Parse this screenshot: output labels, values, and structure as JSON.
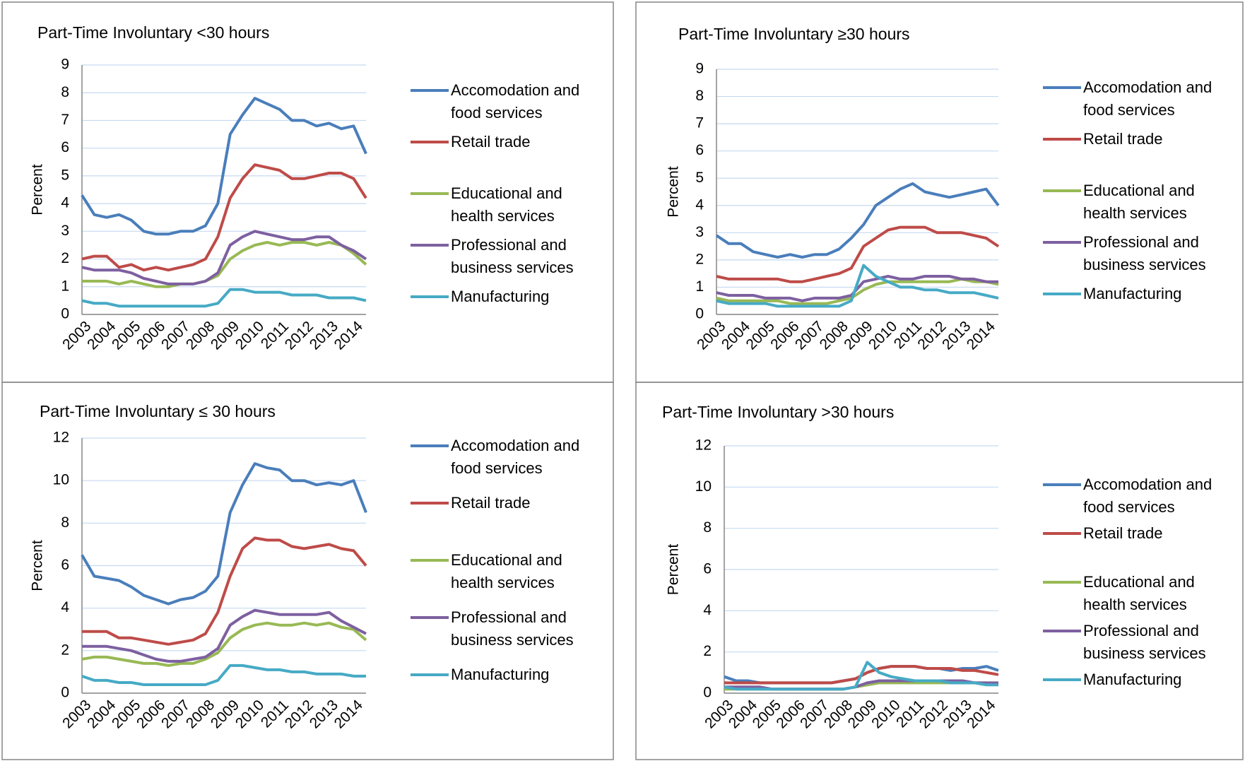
{
  "chart_data": [
    {
      "type": "line",
      "title": "Part-Time Involuntary <30 hours",
      "y_label": "Percent",
      "categories": [
        "2003",
        null,
        "2004",
        null,
        "2005",
        null,
        "2006",
        null,
        "2007",
        null,
        "2008",
        null,
        "2009",
        null,
        "2010",
        null,
        "2011",
        null,
        "2012",
        null,
        "2013",
        null,
        "2014",
        null
      ],
      "ylim": [
        0,
        9
      ],
      "yticks": [
        0,
        1,
        2,
        3,
        4,
        5,
        6,
        7,
        8,
        9
      ],
      "grid": true,
      "series": [
        {
          "name": "Accomodation and food services",
          "color": "#4a7ebb",
          "values": [
            4.3,
            3.6,
            3.5,
            3.6,
            3.4,
            3.0,
            2.9,
            2.9,
            3.0,
            3.0,
            3.2,
            4.0,
            6.5,
            7.2,
            7.8,
            7.6,
            7.4,
            7.0,
            7.0,
            6.8,
            6.9,
            6.7,
            6.8,
            5.8
          ]
        },
        {
          "name": "Retail trade",
          "color": "#be4b48",
          "values": [
            2.0,
            2.1,
            2.1,
            1.7,
            1.8,
            1.6,
            1.7,
            1.6,
            1.7,
            1.8,
            2.0,
            2.8,
            4.2,
            4.9,
            5.4,
            5.3,
            5.2,
            4.9,
            4.9,
            5.0,
            5.1,
            5.1,
            4.9,
            4.2
          ]
        },
        {
          "name": "Educational and health services",
          "color": "#98b954",
          "values": [
            1.2,
            1.2,
            1.2,
            1.1,
            1.2,
            1.1,
            1.0,
            1.0,
            1.1,
            1.1,
            1.2,
            1.4,
            2.0,
            2.3,
            2.5,
            2.6,
            2.5,
            2.6,
            2.6,
            2.5,
            2.6,
            2.5,
            2.2,
            1.8
          ]
        },
        {
          "name": "Professional and business services",
          "color": "#7d60a0",
          "values": [
            1.7,
            1.6,
            1.6,
            1.6,
            1.5,
            1.3,
            1.2,
            1.1,
            1.1,
            1.1,
            1.2,
            1.5,
            2.5,
            2.8,
            3.0,
            2.9,
            2.8,
            2.7,
            2.7,
            2.8,
            2.8,
            2.5,
            2.3,
            2.0
          ]
        },
        {
          "name": "Manufacturing",
          "color": "#46aac5",
          "values": [
            0.5,
            0.4,
            0.4,
            0.3,
            0.3,
            0.3,
            0.3,
            0.3,
            0.3,
            0.3,
            0.3,
            0.4,
            0.9,
            0.9,
            0.8,
            0.8,
            0.8,
            0.7,
            0.7,
            0.7,
            0.6,
            0.6,
            0.6,
            0.5
          ]
        }
      ]
    },
    {
      "type": "line",
      "title": "Part-Time Involuntary ≥30 hours",
      "y_label": "Percent",
      "categories": [
        "2003",
        null,
        "2004",
        null,
        "2005",
        null,
        "2006",
        null,
        "2007",
        null,
        "2008",
        null,
        "2009",
        null,
        "2010",
        null,
        "2011",
        null,
        "2012",
        null,
        "2013",
        null,
        "2014",
        null
      ],
      "ylim": [
        0,
        9
      ],
      "yticks": [
        0,
        1,
        2,
        3,
        4,
        5,
        6,
        7,
        8,
        9
      ],
      "grid": true,
      "series": [
        {
          "name": "Accomodation and food services",
          "color": "#4a7ebb",
          "values": [
            2.9,
            2.6,
            2.6,
            2.3,
            2.2,
            2.1,
            2.2,
            2.1,
            2.2,
            2.2,
            2.4,
            2.8,
            3.3,
            4.0,
            4.3,
            4.6,
            4.8,
            4.5,
            4.4,
            4.3,
            4.4,
            4.5,
            4.6,
            4.0
          ]
        },
        {
          "name": "Retail trade",
          "color": "#be4b48",
          "values": [
            1.4,
            1.3,
            1.3,
            1.3,
            1.3,
            1.3,
            1.2,
            1.2,
            1.3,
            1.4,
            1.5,
            1.7,
            2.5,
            2.8,
            3.1,
            3.2,
            3.2,
            3.2,
            3.0,
            3.0,
            3.0,
            2.9,
            2.8,
            2.5
          ]
        },
        {
          "name": "Educational and health services",
          "color": "#98b954",
          "values": [
            0.6,
            0.5,
            0.5,
            0.5,
            0.5,
            0.5,
            0.4,
            0.4,
            0.4,
            0.4,
            0.5,
            0.6,
            0.9,
            1.1,
            1.2,
            1.2,
            1.2,
            1.2,
            1.2,
            1.2,
            1.3,
            1.2,
            1.2,
            1.1
          ]
        },
        {
          "name": "Professional and business services",
          "color": "#7d60a0",
          "values": [
            0.8,
            0.7,
            0.7,
            0.7,
            0.6,
            0.6,
            0.6,
            0.5,
            0.6,
            0.6,
            0.6,
            0.7,
            1.2,
            1.3,
            1.4,
            1.3,
            1.3,
            1.4,
            1.4,
            1.4,
            1.3,
            1.3,
            1.2,
            1.2
          ]
        },
        {
          "name": "Manufacturing",
          "color": "#46aac5",
          "values": [
            0.5,
            0.4,
            0.4,
            0.4,
            0.4,
            0.3,
            0.3,
            0.3,
            0.3,
            0.3,
            0.3,
            0.5,
            1.8,
            1.4,
            1.2,
            1.0,
            1.0,
            0.9,
            0.9,
            0.8,
            0.8,
            0.8,
            0.7,
            0.6
          ]
        }
      ]
    },
    {
      "type": "line",
      "title": "Part-Time Involuntary ≤ 30 hours",
      "y_label": "Percent",
      "categories": [
        "2003",
        null,
        "2004",
        null,
        "2005",
        null,
        "2006",
        null,
        "2007",
        null,
        "2008",
        null,
        "2009",
        null,
        "2010",
        null,
        "2011",
        null,
        "2012",
        null,
        "2013",
        null,
        "2014",
        null
      ],
      "ylim": [
        0,
        12
      ],
      "yticks": [
        0,
        2,
        4,
        6,
        8,
        10,
        12
      ],
      "grid": true,
      "series": [
        {
          "name": "Accomodation and food services",
          "color": "#4a7ebb",
          "values": [
            6.5,
            5.5,
            5.4,
            5.3,
            5.0,
            4.6,
            4.4,
            4.2,
            4.4,
            4.5,
            4.8,
            5.5,
            8.5,
            9.8,
            10.8,
            10.6,
            10.5,
            10.0,
            10.0,
            9.8,
            9.9,
            9.8,
            10.0,
            8.5
          ]
        },
        {
          "name": "Retail trade",
          "color": "#be4b48",
          "values": [
            2.9,
            2.9,
            2.9,
            2.6,
            2.6,
            2.5,
            2.4,
            2.3,
            2.4,
            2.5,
            2.8,
            3.8,
            5.5,
            6.8,
            7.3,
            7.2,
            7.2,
            6.9,
            6.8,
            6.9,
            7.0,
            6.8,
            6.7,
            6.0
          ]
        },
        {
          "name": "Educational and health services",
          "color": "#98b954",
          "values": [
            1.6,
            1.7,
            1.7,
            1.6,
            1.5,
            1.4,
            1.4,
            1.3,
            1.4,
            1.4,
            1.6,
            1.9,
            2.6,
            3.0,
            3.2,
            3.3,
            3.2,
            3.2,
            3.3,
            3.2,
            3.3,
            3.1,
            3.0,
            2.5
          ]
        },
        {
          "name": "Professional and business services",
          "color": "#7d60a0",
          "values": [
            2.2,
            2.2,
            2.2,
            2.1,
            2.0,
            1.8,
            1.6,
            1.5,
            1.5,
            1.6,
            1.7,
            2.1,
            3.2,
            3.6,
            3.9,
            3.8,
            3.7,
            3.7,
            3.7,
            3.7,
            3.8,
            3.4,
            3.1,
            2.8
          ]
        },
        {
          "name": "Manufacturing",
          "color": "#46aac5",
          "values": [
            0.8,
            0.6,
            0.6,
            0.5,
            0.5,
            0.4,
            0.4,
            0.4,
            0.4,
            0.4,
            0.4,
            0.6,
            1.3,
            1.3,
            1.2,
            1.1,
            1.1,
            1.0,
            1.0,
            0.9,
            0.9,
            0.9,
            0.8,
            0.8
          ]
        }
      ]
    },
    {
      "type": "line",
      "title": "Part-Time Involuntary >30 hours",
      "y_label": "Percent",
      "categories": [
        "2003",
        null,
        "2004",
        null,
        "2005",
        null,
        "2006",
        null,
        "2007",
        null,
        "2008",
        null,
        "2009",
        null,
        "2010",
        null,
        "2011",
        null,
        "2012",
        null,
        "2013",
        null,
        "2014",
        null
      ],
      "ylim": [
        0,
        12
      ],
      "yticks": [
        0,
        2,
        4,
        6,
        8,
        10,
        12
      ],
      "grid": true,
      "series": [
        {
          "name": "Accomodation and food services",
          "color": "#4a7ebb",
          "values": [
            0.8,
            0.6,
            0.6,
            0.5,
            0.5,
            0.5,
            0.5,
            0.5,
            0.5,
            0.5,
            0.6,
            0.7,
            1.0,
            1.2,
            1.3,
            1.3,
            1.3,
            1.2,
            1.2,
            1.1,
            1.2,
            1.2,
            1.3,
            1.1
          ]
        },
        {
          "name": "Retail trade",
          "color": "#be4b48",
          "values": [
            0.5,
            0.5,
            0.5,
            0.5,
            0.5,
            0.5,
            0.5,
            0.5,
            0.5,
            0.5,
            0.6,
            0.7,
            1.0,
            1.2,
            1.3,
            1.3,
            1.3,
            1.2,
            1.2,
            1.2,
            1.1,
            1.1,
            1.0,
            0.9
          ]
        },
        {
          "name": "Educational and health services",
          "color": "#98b954",
          "values": [
            0.2,
            0.2,
            0.2,
            0.2,
            0.2,
            0.2,
            0.2,
            0.2,
            0.2,
            0.2,
            0.2,
            0.3,
            0.4,
            0.5,
            0.5,
            0.5,
            0.5,
            0.5,
            0.5,
            0.5,
            0.5,
            0.5,
            0.5,
            0.4
          ]
        },
        {
          "name": "Professional and business services",
          "color": "#7d60a0",
          "values": [
            0.3,
            0.3,
            0.3,
            0.3,
            0.2,
            0.2,
            0.2,
            0.2,
            0.2,
            0.2,
            0.2,
            0.3,
            0.5,
            0.6,
            0.6,
            0.6,
            0.6,
            0.6,
            0.6,
            0.6,
            0.6,
            0.5,
            0.5,
            0.5
          ]
        },
        {
          "name": "Manufacturing",
          "color": "#46aac5",
          "values": [
            0.3,
            0.2,
            0.2,
            0.2,
            0.2,
            0.2,
            0.2,
            0.2,
            0.2,
            0.2,
            0.2,
            0.3,
            1.5,
            1.0,
            0.8,
            0.7,
            0.6,
            0.6,
            0.6,
            0.5,
            0.5,
            0.5,
            0.4,
            0.4
          ]
        }
      ]
    }
  ]
}
